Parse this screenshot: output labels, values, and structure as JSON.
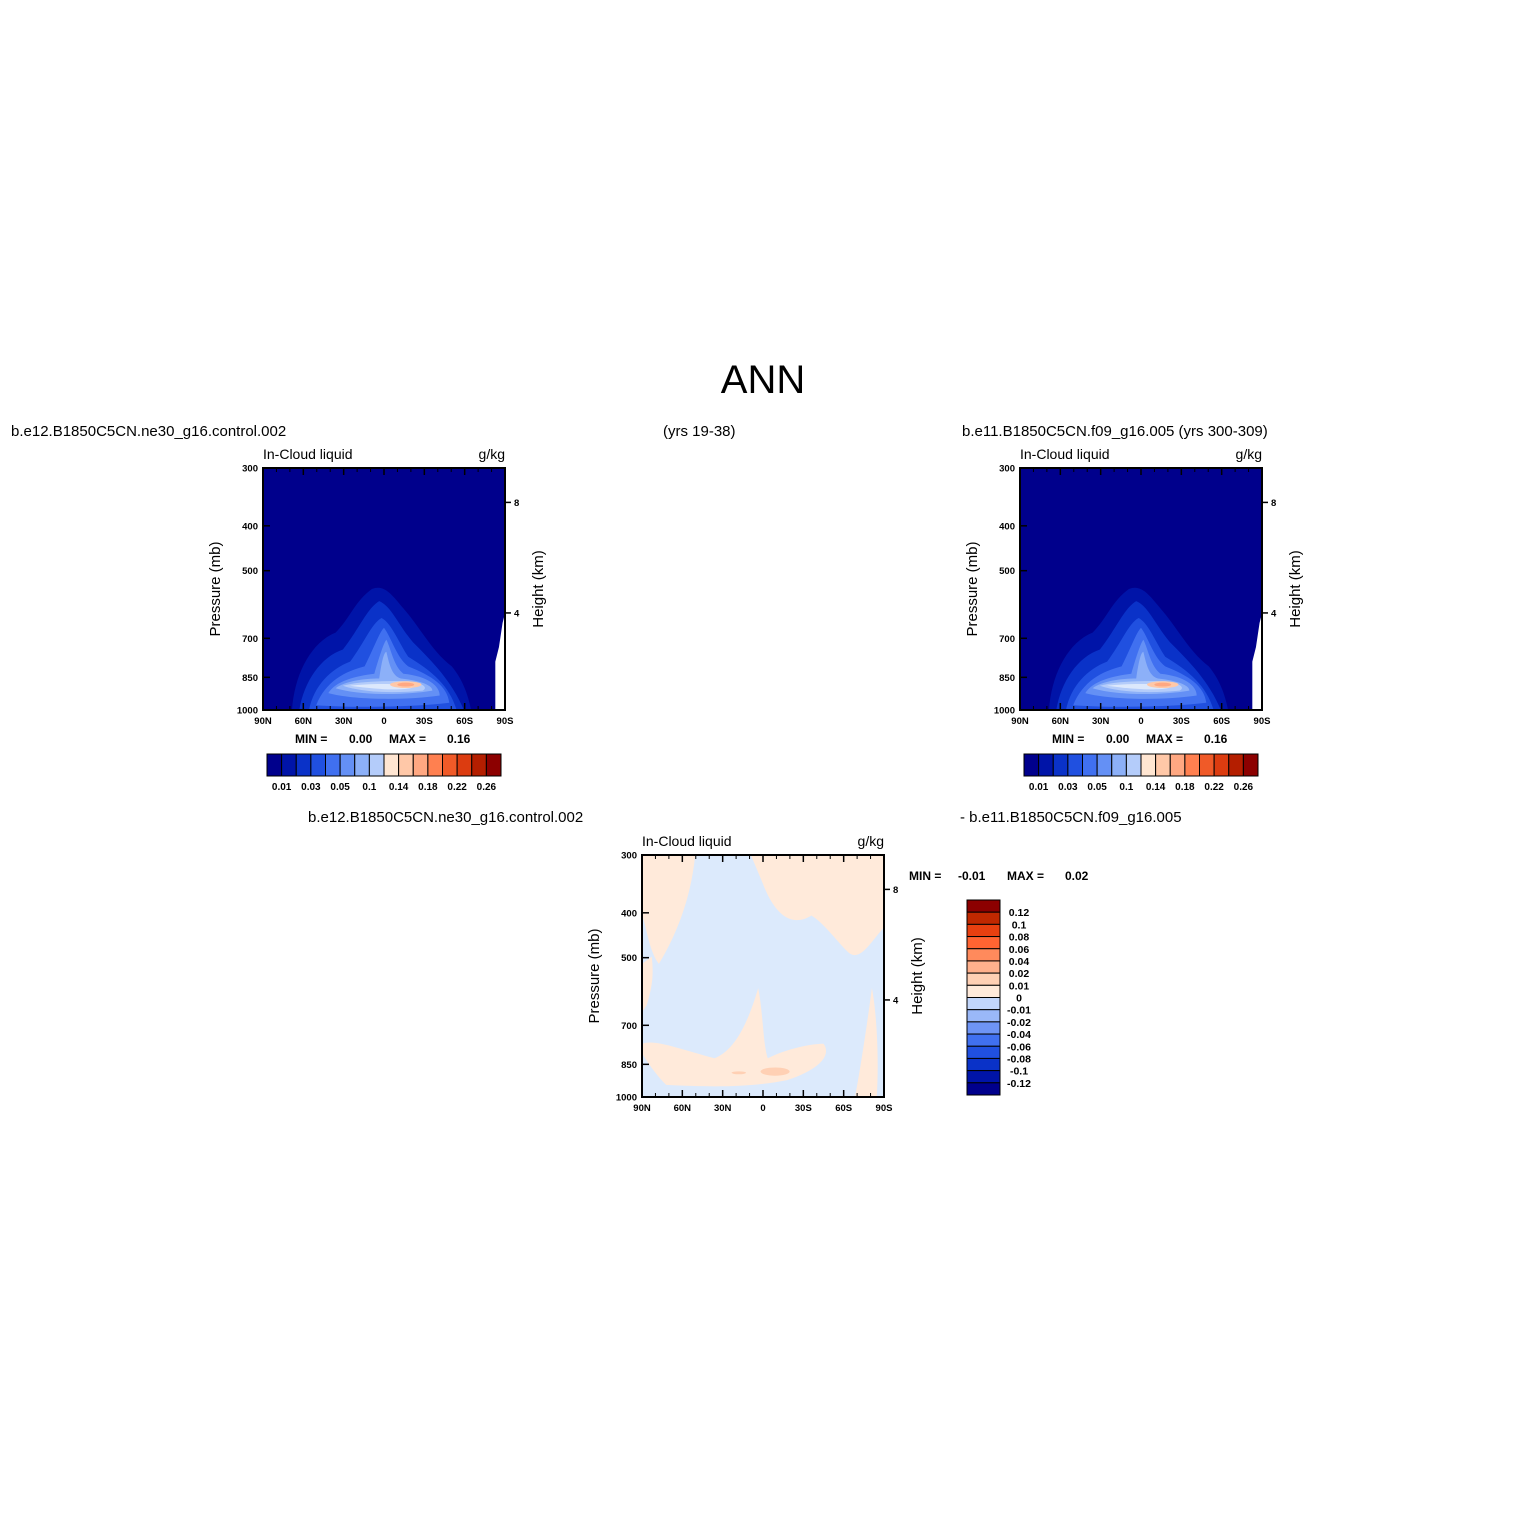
{
  "figure": {
    "title": "ANN",
    "colors": {
      "abs": [
        "#00008C",
        "#0014A8",
        "#0A32C8",
        "#2050E0",
        "#4070F0",
        "#6490F5",
        "#8CB0F8",
        "#B4CCFA",
        "#DCE8FC",
        "#FFE6D2",
        "#FFC8A8",
        "#FFA882",
        "#FF8050",
        "#F05A28",
        "#DC3C10",
        "#B41E00",
        "#8C0000"
      ],
      "diff": [
        "#00008C",
        "#0014A8",
        "#0A32C8",
        "#2050E0",
        "#4070F0",
        "#6E94F5",
        "#9AB8F8",
        "#C2D6FB",
        "#DCEAFC",
        "#FFEADA",
        "#FFD0B4",
        "#FFB08C",
        "#FF8A5C",
        "#FF6432",
        "#E84010",
        "#C02800",
        "#8C0000"
      ]
    }
  },
  "chart_data": [
    {
      "type": "heatmap",
      "case_label": "b.e12.B1850C5CN.ne30_g16.control.002",
      "years": "(yrs 19-38)",
      "left_title": "In-Cloud liquid",
      "units": "g/kg",
      "ylabel": "Pressure (mb)",
      "ylabel_right": "Height (km)",
      "x_ticks": [
        "90N",
        "60N",
        "30N",
        "0",
        "30S",
        "60S",
        "90S"
      ],
      "y_ticks": [
        "300",
        "400",
        "500",
        "700",
        "850",
        "1000"
      ],
      "y_ticks_right": [
        "8",
        "4"
      ],
      "min_label": "MIN =",
      "min_value": "0.00",
      "max_label": "MAX =",
      "max_value": "0.16",
      "colorbar_labels": [
        "0.01",
        "0.03",
        "0.05",
        "0.1",
        "0.14",
        "0.18",
        "0.22",
        "0.26"
      ],
      "ylim": [
        1000,
        300
      ]
    },
    {
      "type": "heatmap",
      "case_label": "b.e11.B1850C5CN.f09_g16.005 (yrs 300-309)",
      "left_title": "In-Cloud liquid",
      "units": "g/kg",
      "ylabel": "Pressure (mb)",
      "ylabel_right": "Height (km)",
      "x_ticks": [
        "90N",
        "60N",
        "30N",
        "0",
        "30S",
        "60S",
        "90S"
      ],
      "y_ticks": [
        "300",
        "400",
        "500",
        "700",
        "850",
        "1000"
      ],
      "y_ticks_right": [
        "8",
        "4"
      ],
      "min_label": "MIN =",
      "min_value": "0.00",
      "max_label": "MAX =",
      "max_value": "0.16",
      "colorbar_labels": [
        "0.01",
        "0.03",
        "0.05",
        "0.1",
        "0.14",
        "0.18",
        "0.22",
        "0.26"
      ],
      "ylim": [
        1000,
        300
      ]
    },
    {
      "type": "heatmap",
      "case_label_a": "b.e12.B1850C5CN.ne30_g16.control.002",
      "case_label_b": "- b.e11.B1850C5CN.f09_g16.005",
      "left_title": "In-Cloud liquid",
      "units": "g/kg",
      "ylabel": "Pressure (mb)",
      "ylabel_right": "Height (km)",
      "x_ticks": [
        "90N",
        "60N",
        "30N",
        "0",
        "30S",
        "60S",
        "90S"
      ],
      "y_ticks": [
        "300",
        "400",
        "500",
        "700",
        "850",
        "1000"
      ],
      "y_ticks_right": [
        "8",
        "4"
      ],
      "min_label": "MIN =",
      "min_value": "-0.01",
      "max_label": "MAX =",
      "max_value": "0.02",
      "colorbar_labels": [
        "0.12",
        "0.1",
        "0.08",
        "0.06",
        "0.04",
        "0.02",
        "0.01",
        "0",
        "-0.01",
        "-0.02",
        "-0.04",
        "-0.06",
        "-0.08",
        "-0.1",
        "-0.12"
      ],
      "ylim": [
        1000,
        300
      ]
    }
  ]
}
